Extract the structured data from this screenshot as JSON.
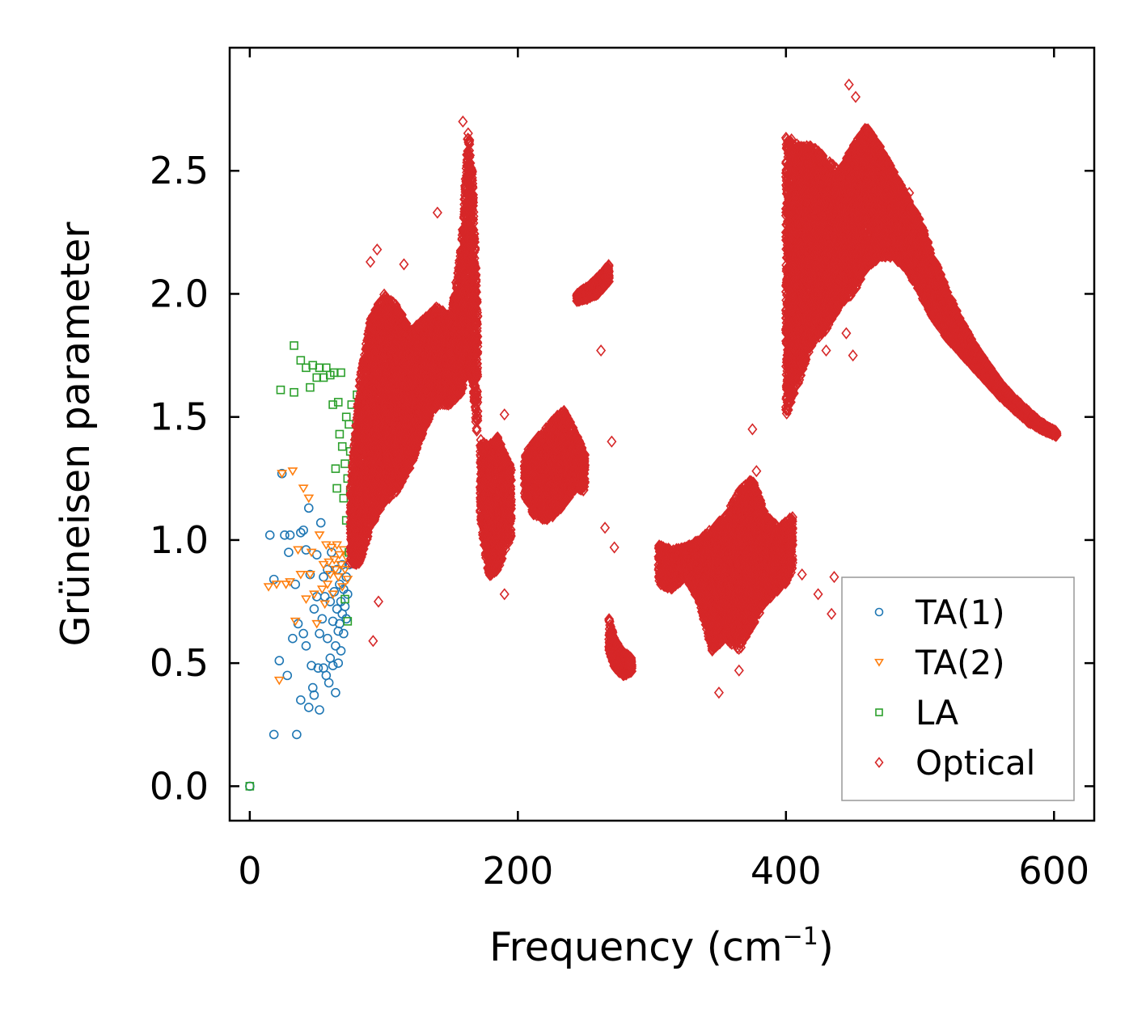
{
  "chart_data": {
    "type": "scatter",
    "title": "",
    "xlabel": "Frequency (cm",
    "xlabel_sup": "−1",
    "xlabel_close": ")",
    "ylabel": "Grüneisen parameter",
    "xlim": [
      -15,
      630
    ],
    "ylim": [
      -0.14,
      3.0
    ],
    "xticks": [
      0,
      200,
      400,
      600
    ],
    "xtick_labels": [
      "0",
      "200",
      "400",
      "600"
    ],
    "yticks": [
      0.0,
      0.5,
      1.0,
      1.5,
      2.0,
      2.5
    ],
    "ytick_labels": [
      "0.0",
      "0.5",
      "1.0",
      "1.5",
      "2.0",
      "2.5"
    ],
    "grid": false,
    "legend_position": "bottom-right",
    "series": [
      {
        "name": "TA(1)",
        "marker": "circle",
        "color": "#1f77b4",
        "points": [
          [
            0,
            0
          ],
          [
            15,
            1.02
          ],
          [
            18,
            0.84
          ],
          [
            18,
            0.21
          ],
          [
            22,
            0.51
          ],
          [
            24,
            1.27
          ],
          [
            26,
            1.02
          ],
          [
            28,
            0.45
          ],
          [
            29,
            0.95
          ],
          [
            30,
            1.02
          ],
          [
            32,
            0.6
          ],
          [
            34,
            0.82
          ],
          [
            35,
            0.21
          ],
          [
            36,
            0.66
          ],
          [
            38,
            0.35
          ],
          [
            38,
            1.03
          ],
          [
            40,
            1.04
          ],
          [
            40,
            0.62
          ],
          [
            42,
            0.96
          ],
          [
            42,
            0.57
          ],
          [
            44,
            0.32
          ],
          [
            44,
            1.13
          ],
          [
            45,
            0.86
          ],
          [
            46,
            0.49
          ],
          [
            47,
            0.4
          ],
          [
            48,
            0.72
          ],
          [
            48,
            0.37
          ],
          [
            50,
            0.77
          ],
          [
            50,
            0.94
          ],
          [
            51,
            0.48
          ],
          [
            52,
            0.62
          ],
          [
            52,
            0.31
          ],
          [
            53,
            1.07
          ],
          [
            54,
            0.68
          ],
          [
            55,
            0.85
          ],
          [
            55,
            0.48
          ],
          [
            56,
            0.77
          ],
          [
            57,
            0.45
          ],
          [
            58,
            0.88
          ],
          [
            58,
            0.6
          ],
          [
            59,
            0.42
          ],
          [
            60,
            0.75
          ],
          [
            60,
            0.52
          ],
          [
            61,
            0.95
          ],
          [
            62,
            0.67
          ],
          [
            62,
            0.49
          ],
          [
            63,
            0.79
          ],
          [
            64,
            0.57
          ],
          [
            64,
            0.38
          ],
          [
            65,
            0.88
          ],
          [
            65,
            0.72
          ],
          [
            66,
            0.63
          ],
          [
            66,
            0.5
          ],
          [
            67,
            0.82
          ],
          [
            67,
            0.66
          ],
          [
            68,
            0.75
          ],
          [
            68,
            0.55
          ],
          [
            69,
            0.9
          ],
          [
            69,
            0.7
          ],
          [
            70,
            0.62
          ],
          [
            70,
            0.8
          ],
          [
            71,
            0.73
          ],
          [
            72,
            0.85
          ],
          [
            72,
            0.68
          ],
          [
            73,
            0.78
          ],
          [
            74,
            0.9
          ]
        ]
      },
      {
        "name": "TA(2)",
        "marker": "triangle-down",
        "color": "#ff7f0e",
        "points": [
          [
            14,
            0.81
          ],
          [
            20,
            0.82
          ],
          [
            22,
            0.43
          ],
          [
            24,
            1.27
          ],
          [
            27,
            0.82
          ],
          [
            30,
            0.83
          ],
          [
            32,
            1.28
          ],
          [
            34,
            0.67
          ],
          [
            36,
            0.96
          ],
          [
            38,
            0.86
          ],
          [
            40,
            1.21
          ],
          [
            42,
            0.76
          ],
          [
            44,
            1.17
          ],
          [
            45,
            0.86
          ],
          [
            46,
            0.95
          ],
          [
            48,
            0.78
          ],
          [
            50,
            0.66
          ],
          [
            52,
            1.02
          ],
          [
            54,
            0.8
          ],
          [
            55,
            0.9
          ],
          [
            56,
            0.74
          ],
          [
            57,
            0.98
          ],
          [
            58,
            0.82
          ],
          [
            59,
            0.91
          ],
          [
            60,
            0.86
          ],
          [
            61,
            0.97
          ],
          [
            62,
            0.78
          ],
          [
            63,
            0.92
          ],
          [
            64,
            0.88
          ],
          [
            65,
            0.98
          ],
          [
            66,
            0.85
          ],
          [
            67,
            0.94
          ],
          [
            68,
            0.9
          ],
          [
            69,
            0.81
          ],
          [
            70,
            0.96
          ],
          [
            71,
            0.88
          ],
          [
            72,
            0.93
          ],
          [
            73,
            0.84
          ]
        ]
      },
      {
        "name": "LA",
        "marker": "square",
        "color": "#2ca02c",
        "points": [
          [
            0,
            0
          ],
          [
            23,
            1.61
          ],
          [
            33,
            1.6
          ],
          [
            33,
            1.79
          ],
          [
            38,
            1.73
          ],
          [
            42,
            1.7
          ],
          [
            45,
            1.62
          ],
          [
            47,
            1.71
          ],
          [
            50,
            1.66
          ],
          [
            52,
            1.7
          ],
          [
            55,
            1.66
          ],
          [
            57,
            1.7
          ],
          [
            60,
            1.67
          ],
          [
            62,
            1.55
          ],
          [
            63,
            1.68
          ],
          [
            64,
            1.29
          ],
          [
            65,
            1.21
          ],
          [
            66,
            1.56
          ],
          [
            67,
            1.43
          ],
          [
            68,
            1.68
          ],
          [
            69,
            1.38
          ],
          [
            70,
            1.17
          ],
          [
            71,
            1.31
          ],
          [
            71,
            0.76
          ],
          [
            72,
            1.5
          ],
          [
            72,
            1.08
          ],
          [
            73,
            1.25
          ],
          [
            73,
            0.67
          ],
          [
            74,
            1.47
          ],
          [
            74,
            0.95
          ],
          [
            75,
            1.2
          ],
          [
            75,
            1.36
          ],
          [
            76,
            1.55
          ],
          [
            77,
            1.3
          ],
          [
            77,
            1.04
          ],
          [
            78,
            1.15
          ],
          [
            78,
            0.92
          ],
          [
            79,
            1.42
          ],
          [
            80,
            1.59
          ]
        ]
      },
      {
        "name": "Optical",
        "marker": "diamond",
        "color": "#d62728",
        "segments": [
          [
            [
              75,
              0.9,
              1.2
            ],
            [
              82,
              0.9,
              1.65
            ],
            [
              90,
              1.05,
              1.9
            ],
            [
              100,
              1.15,
              2.0
            ],
            [
              110,
              1.2,
              1.95
            ],
            [
              120,
              1.3,
              1.85
            ],
            [
              130,
              1.45,
              1.9
            ],
            [
              140,
              1.55,
              1.95
            ],
            [
              150,
              1.55,
              1.9
            ],
            [
              158,
              1.6,
              2.2
            ],
            [
              163,
              1.7,
              2.68
            ],
            [
              166,
              1.65,
              2.5
            ],
            [
              170,
              1.4,
              1.9
            ]
          ],
          [
            [
              172,
              1.1,
              1.42
            ],
            [
              178,
              0.85,
              1.38
            ],
            [
              185,
              0.88,
              1.42
            ],
            [
              190,
              0.95,
              1.35
            ],
            [
              195,
              1.0,
              1.3
            ]
          ],
          [
            [
              205,
              1.18,
              1.35
            ],
            [
              212,
              1.1,
              1.4
            ],
            [
              220,
              1.08,
              1.45
            ],
            [
              228,
              1.1,
              1.5
            ],
            [
              235,
              1.15,
              1.53
            ],
            [
              242,
              1.2,
              1.45
            ],
            [
              250,
              1.2,
              1.35
            ]
          ],
          [
            [
              244,
              1.97,
              2.0
            ],
            [
              252,
              1.98,
              2.03
            ],
            [
              260,
              2.0,
              2.07
            ],
            [
              268,
              2.05,
              2.12
            ]
          ],
          [
            [
              268,
              0.55,
              0.68
            ],
            [
              272,
              0.48,
              0.6
            ],
            [
              278,
              0.45,
              0.55
            ],
            [
              285,
              0.46,
              0.52
            ]
          ],
          [
            [
              305,
              0.82,
              0.98
            ],
            [
              315,
              0.8,
              0.96
            ],
            [
              325,
              0.85,
              0.97
            ],
            [
              335,
              0.75,
              1.0
            ],
            [
              345,
              0.55,
              1.05
            ],
            [
              355,
              0.6,
              1.1
            ],
            [
              365,
              0.55,
              1.2
            ],
            [
              375,
              0.65,
              1.25
            ],
            [
              385,
              0.75,
              1.1
            ],
            [
              395,
              0.8,
              1.05
            ],
            [
              405,
              0.85,
              1.1
            ]
          ],
          [
            [
              400,
              1.5,
              2.65
            ],
            [
              410,
              1.65,
              2.6
            ],
            [
              420,
              1.8,
              2.6
            ],
            [
              430,
              1.85,
              2.55
            ],
            [
              440,
              1.95,
              2.5
            ],
            [
              450,
              2.0,
              2.6
            ],
            [
              460,
              2.1,
              2.68
            ],
            [
              470,
              2.15,
              2.6
            ],
            [
              480,
              2.15,
              2.5
            ],
            [
              490,
              2.1,
              2.4
            ],
            [
              500,
              2.0,
              2.3
            ],
            [
              510,
              1.9,
              2.15
            ],
            [
              520,
              1.82,
              2.02
            ],
            [
              530,
              1.76,
              1.9
            ],
            [
              540,
              1.7,
              1.8
            ],
            [
              550,
              1.64,
              1.72
            ],
            [
              560,
              1.58,
              1.64
            ],
            [
              570,
              1.53,
              1.58
            ],
            [
              580,
              1.48,
              1.53
            ],
            [
              590,
              1.45,
              1.48
            ],
            [
              602,
              1.42,
              1.44
            ]
          ]
        ],
        "outliers": [
          [
            92,
            0.59
          ],
          [
            96,
            0.75
          ],
          [
            90,
            2.13
          ],
          [
            95,
            2.18
          ],
          [
            115,
            2.12
          ],
          [
            140,
            2.33
          ],
          [
            159,
            2.7
          ],
          [
            190,
            1.51
          ],
          [
            190,
            0.78
          ],
          [
            262,
            1.77
          ],
          [
            265,
            1.05
          ],
          [
            270,
            1.4
          ],
          [
            272,
            0.97
          ],
          [
            375,
            1.45
          ],
          [
            365,
            0.47
          ],
          [
            350,
            0.38
          ],
          [
            378,
            1.28
          ],
          [
            412,
            0.86
          ],
          [
            424,
            0.78
          ],
          [
            430,
            1.77
          ],
          [
            434,
            0.7
          ],
          [
            436,
            0.85
          ],
          [
            447,
            2.85
          ],
          [
            452,
            2.8
          ],
          [
            445,
            1.84
          ],
          [
            450,
            1.75
          ],
          [
            492,
            2.41
          ],
          [
            475,
            2.3
          ]
        ]
      }
    ]
  }
}
